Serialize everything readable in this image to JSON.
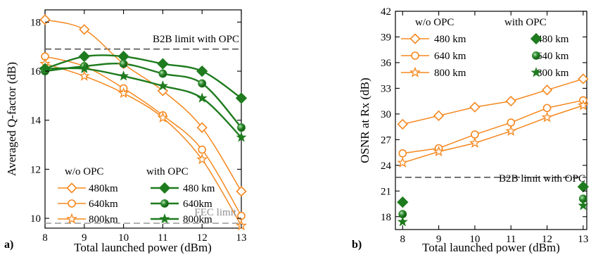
{
  "colors": {
    "wo_opc": "#f5881f",
    "with_opc": "#1e7b1e",
    "ref_dark": "#555555",
    "ref_light": "#a0a0a0",
    "axis": "#000000"
  },
  "chart_data": [
    {
      "type": "line",
      "panel_label": "a)",
      "xlabel": "Total launched power (dBm)",
      "ylabel": "Averaged Q-factor (dB)",
      "xlim": [
        8,
        13
      ],
      "ylim": [
        9.6,
        18.5
      ],
      "xticks": [
        8,
        9,
        10,
        11,
        12,
        13
      ],
      "yticks": [
        10,
        12,
        14,
        16,
        18
      ],
      "x": [
        8,
        9,
        10,
        11,
        12,
        13
      ],
      "grid": false,
      "legend": {
        "placement": "bottom-left",
        "group_titles": [
          "w/o OPC",
          "with OPC"
        ]
      },
      "series": [
        {
          "name": "480km",
          "group": "wo",
          "marker": "diamond",
          "values": [
            18.1,
            17.7,
            16.3,
            15.2,
            13.7,
            11.1
          ]
        },
        {
          "name": "640km",
          "group": "wo",
          "marker": "circle",
          "values": [
            16.6,
            16.2,
            15.3,
            14.2,
            12.8,
            10.1
          ]
        },
        {
          "name": "800km",
          "group": "wo",
          "marker": "star",
          "values": [
            16.3,
            15.8,
            15.1,
            14.1,
            12.4,
            9.7
          ]
        },
        {
          "name": "480 km",
          "group": "with",
          "marker": "diamond",
          "values": [
            16.1,
            16.6,
            16.6,
            16.3,
            16.0,
            14.9
          ]
        },
        {
          "name": "640km",
          "group": "with",
          "marker": "circle",
          "values": [
            16.0,
            16.2,
            16.3,
            15.9,
            15.5,
            13.7
          ]
        },
        {
          "name": "800km",
          "group": "with",
          "marker": "star",
          "values": [
            16.1,
            16.1,
            15.8,
            15.4,
            14.9,
            13.3
          ]
        }
      ],
      "reference_lines": [
        {
          "label": "B2B limit with OPC",
          "y": 16.9,
          "style": "dark"
        },
        {
          "label": "FEC limit",
          "y": 9.8,
          "style": "light"
        }
      ]
    },
    {
      "type": "line",
      "panel_label": "b)",
      "xlabel": "Total launched power (dBm)",
      "ylabel": "OSNR at Rx (dB)",
      "xlim": [
        7.8,
        13.1
      ],
      "ylim": [
        16.5,
        42
      ],
      "xticks": [
        8,
        9,
        10,
        11,
        12,
        13
      ],
      "yticks": [
        18,
        21,
        24,
        27,
        30,
        33,
        36,
        39,
        42
      ],
      "grid": false,
      "legend": {
        "placement": "top-left",
        "group_titles": [
          "w/o OPC",
          "with OPC"
        ]
      },
      "series": [
        {
          "name": "480 km",
          "group": "wo",
          "marker": "diamond",
          "x": [
            8,
            9,
            10,
            11,
            12,
            13
          ],
          "values": [
            28.8,
            29.8,
            30.8,
            31.5,
            32.8,
            34.1
          ]
        },
        {
          "name": "640 km",
          "group": "wo",
          "marker": "circle",
          "x": [
            8,
            9,
            10,
            11,
            12,
            13
          ],
          "values": [
            25.4,
            26.0,
            27.6,
            29.0,
            30.7,
            31.6
          ]
        },
        {
          "name": "800 km",
          "group": "wo",
          "marker": "star",
          "x": [
            8,
            9,
            10,
            11,
            12,
            13
          ],
          "values": [
            24.3,
            25.6,
            26.6,
            28.0,
            29.6,
            31.0
          ]
        },
        {
          "name": "480 km",
          "group": "with",
          "marker": "diamond",
          "x": [
            8,
            13
          ],
          "values": [
            19.7,
            21.5
          ]
        },
        {
          "name": "640 km",
          "group": "with",
          "marker": "circle",
          "x": [
            8,
            13
          ],
          "values": [
            18.3,
            20.1
          ]
        },
        {
          "name": "800 km",
          "group": "with",
          "marker": "star",
          "x": [
            8,
            13
          ],
          "values": [
            17.4,
            19.3
          ]
        }
      ],
      "reference_lines": [
        {
          "label": "B2B limit with OPC",
          "y": 22.6,
          "style": "dark"
        }
      ]
    }
  ]
}
